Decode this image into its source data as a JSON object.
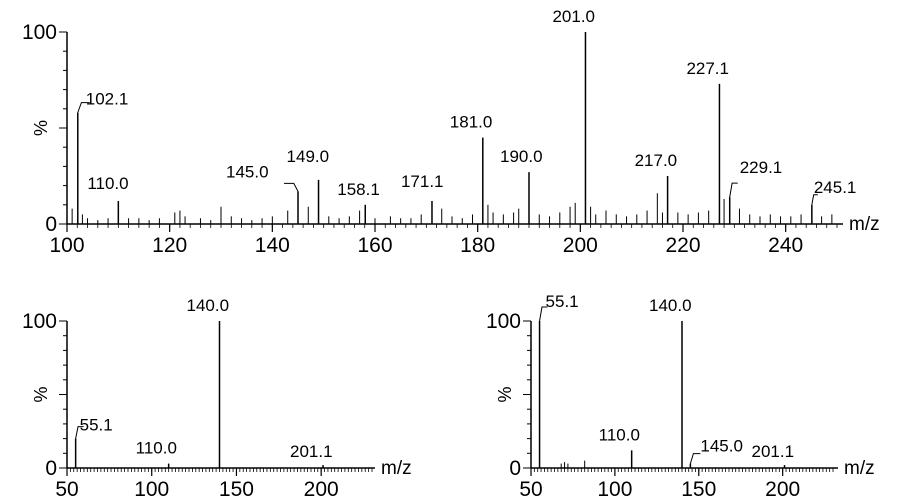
{
  "chart_data": [
    {
      "type": "bar",
      "xlabel": "m/z",
      "ylabel": "%",
      "xlim": [
        100,
        250
      ],
      "ylim": [
        0,
        100
      ],
      "xticks": [
        100,
        120,
        140,
        160,
        180,
        200,
        220,
        240
      ],
      "yticks": [
        0,
        100
      ],
      "peaks": [
        {
          "mz": 102.1,
          "intensity": 58,
          "label": "102.1"
        },
        {
          "mz": 110.0,
          "intensity": 12,
          "label": "110.0"
        },
        {
          "mz": 145.0,
          "intensity": 17,
          "label": "145.0"
        },
        {
          "mz": 149.0,
          "intensity": 23,
          "label": "149.0"
        },
        {
          "mz": 158.1,
          "intensity": 10,
          "label": "158.1"
        },
        {
          "mz": 171.1,
          "intensity": 12,
          "label": "171.1"
        },
        {
          "mz": 181.0,
          "intensity": 45,
          "label": "181.0"
        },
        {
          "mz": 190.0,
          "intensity": 27,
          "label": "190.0"
        },
        {
          "mz": 201.0,
          "intensity": 100,
          "label": "201.0"
        },
        {
          "mz": 217.0,
          "intensity": 25,
          "label": "217.0"
        },
        {
          "mz": 227.1,
          "intensity": 73,
          "label": "227.1"
        },
        {
          "mz": 229.1,
          "intensity": 14,
          "label": "229.1"
        },
        {
          "mz": 245.1,
          "intensity": 10,
          "label": "245.1"
        }
      ],
      "minor_peaks": [
        {
          "mz": 101.0,
          "intensity": 8
        },
        {
          "mz": 103.0,
          "intensity": 5
        },
        {
          "mz": 104.0,
          "intensity": 3
        },
        {
          "mz": 106.0,
          "intensity": 2
        },
        {
          "mz": 108.0,
          "intensity": 3
        },
        {
          "mz": 112.0,
          "intensity": 3
        },
        {
          "mz": 114.0,
          "intensity": 3
        },
        {
          "mz": 116.0,
          "intensity": 2
        },
        {
          "mz": 118.0,
          "intensity": 3
        },
        {
          "mz": 121.0,
          "intensity": 6
        },
        {
          "mz": 122.0,
          "intensity": 7
        },
        {
          "mz": 123.0,
          "intensity": 4
        },
        {
          "mz": 126.0,
          "intensity": 3
        },
        {
          "mz": 128.0,
          "intensity": 2
        },
        {
          "mz": 130.0,
          "intensity": 9
        },
        {
          "mz": 132.0,
          "intensity": 4
        },
        {
          "mz": 134.0,
          "intensity": 3
        },
        {
          "mz": 136.0,
          "intensity": 2
        },
        {
          "mz": 138.0,
          "intensity": 3
        },
        {
          "mz": 140.0,
          "intensity": 4
        },
        {
          "mz": 143.0,
          "intensity": 7
        },
        {
          "mz": 147.0,
          "intensity": 9
        },
        {
          "mz": 151.0,
          "intensity": 4
        },
        {
          "mz": 153.0,
          "intensity": 3
        },
        {
          "mz": 155.0,
          "intensity": 4
        },
        {
          "mz": 157.0,
          "intensity": 7
        },
        {
          "mz": 160.0,
          "intensity": 3
        },
        {
          "mz": 163.0,
          "intensity": 4
        },
        {
          "mz": 165.0,
          "intensity": 3
        },
        {
          "mz": 167.0,
          "intensity": 3
        },
        {
          "mz": 169.0,
          "intensity": 5
        },
        {
          "mz": 173.0,
          "intensity": 8
        },
        {
          "mz": 175.0,
          "intensity": 4
        },
        {
          "mz": 177.0,
          "intensity": 3
        },
        {
          "mz": 179.0,
          "intensity": 5
        },
        {
          "mz": 182.0,
          "intensity": 10
        },
        {
          "mz": 183.0,
          "intensity": 6
        },
        {
          "mz": 185.0,
          "intensity": 5
        },
        {
          "mz": 187.0,
          "intensity": 6
        },
        {
          "mz": 188.0,
          "intensity": 8
        },
        {
          "mz": 192.0,
          "intensity": 5
        },
        {
          "mz": 194.0,
          "intensity": 4
        },
        {
          "mz": 196.0,
          "intensity": 6
        },
        {
          "mz": 198.0,
          "intensity": 9
        },
        {
          "mz": 199.0,
          "intensity": 11
        },
        {
          "mz": 202.0,
          "intensity": 9
        },
        {
          "mz": 203.0,
          "intensity": 5
        },
        {
          "mz": 205.0,
          "intensity": 7
        },
        {
          "mz": 207.0,
          "intensity": 5
        },
        {
          "mz": 209.0,
          "intensity": 4
        },
        {
          "mz": 211.0,
          "intensity": 5
        },
        {
          "mz": 213.0,
          "intensity": 7
        },
        {
          "mz": 215.0,
          "intensity": 16
        },
        {
          "mz": 216.0,
          "intensity": 6
        },
        {
          "mz": 219.0,
          "intensity": 6
        },
        {
          "mz": 221.0,
          "intensity": 5
        },
        {
          "mz": 223.0,
          "intensity": 6
        },
        {
          "mz": 225.0,
          "intensity": 7
        },
        {
          "mz": 228.0,
          "intensity": 13
        },
        {
          "mz": 231.0,
          "intensity": 8
        },
        {
          "mz": 233.0,
          "intensity": 5
        },
        {
          "mz": 235.0,
          "intensity": 4
        },
        {
          "mz": 237.0,
          "intensity": 5
        },
        {
          "mz": 239.0,
          "intensity": 4
        },
        {
          "mz": 241.0,
          "intensity": 4
        },
        {
          "mz": 243.0,
          "intensity": 5
        },
        {
          "mz": 247.0,
          "intensity": 4
        },
        {
          "mz": 249.0,
          "intensity": 5
        }
      ]
    },
    {
      "type": "bar",
      "xlabel": "m/z",
      "ylabel": "%",
      "xlim": [
        50,
        230
      ],
      "ylim": [
        0,
        100
      ],
      "xticks": [
        50,
        100,
        150,
        200
      ],
      "yticks": [
        0,
        100
      ],
      "peaks": [
        {
          "mz": 55.1,
          "intensity": 20,
          "label": "55.1"
        },
        {
          "mz": 110.0,
          "intensity": 3,
          "label": "110.0"
        },
        {
          "mz": 140.0,
          "intensity": 100,
          "label": "140.0"
        },
        {
          "mz": 201.1,
          "intensity": 2,
          "label": "201.1"
        }
      ],
      "minor_peaks": []
    },
    {
      "type": "bar",
      "xlabel": "m/z",
      "ylabel": "%",
      "xlim": [
        50,
        230
      ],
      "ylim": [
        0,
        100
      ],
      "xticks": [
        50,
        100,
        150,
        200
      ],
      "yticks": [
        0,
        100
      ],
      "peaks": [
        {
          "mz": 55.1,
          "intensity": 100,
          "label": "55.1"
        },
        {
          "mz": 110.0,
          "intensity": 12,
          "label": "110.0"
        },
        {
          "mz": 140.0,
          "intensity": 100,
          "label": "140.0"
        },
        {
          "mz": 145.0,
          "intensity": 3,
          "label": "145.0"
        },
        {
          "mz": 201.1,
          "intensity": 2,
          "label": "201.1"
        }
      ],
      "minor_peaks": [
        {
          "mz": 68.0,
          "intensity": 3
        },
        {
          "mz": 70.0,
          "intensity": 4
        },
        {
          "mz": 72.0,
          "intensity": 3
        },
        {
          "mz": 82.0,
          "intensity": 5
        }
      ]
    }
  ]
}
